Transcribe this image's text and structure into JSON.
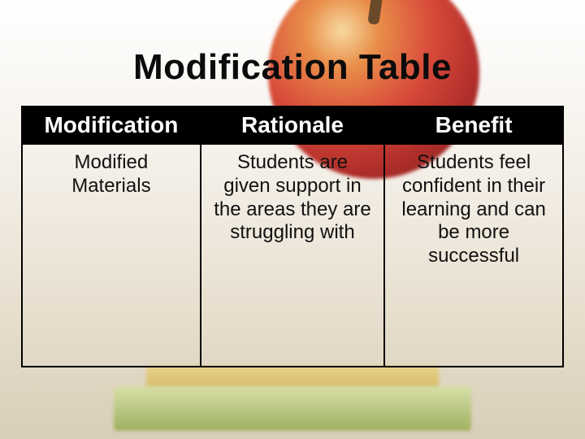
{
  "slide": {
    "title": "Modification Table",
    "title_color": "#0b0b0b",
    "title_fontsize": 44,
    "background_gradient": [
      "#ffffff",
      "#f5f1ea",
      "#e8dfcf",
      "#d9ceb8"
    ]
  },
  "table": {
    "type": "table",
    "border_color": "#000000",
    "header_bg": "#000000",
    "header_text_color": "#ffffff",
    "header_fontsize": 28,
    "cell_fontsize": 24,
    "cell_text_color": "#111111",
    "columns": [
      {
        "label": "Modification",
        "width_pct": 33,
        "align": "center"
      },
      {
        "label": "Rationale",
        "width_pct": 34,
        "align": "center"
      },
      {
        "label": "Benefit",
        "width_pct": 33,
        "align": "center"
      }
    ],
    "rows": [
      {
        "modification": "Modified Materials",
        "rationale": "Students are given support in the areas they are struggling with",
        "benefit": "Students feel confident in their learning and can be more successful"
      }
    ]
  },
  "decor": {
    "apple_colors": [
      "#f7d9a0",
      "#e98f4a",
      "#d84a3a",
      "#b02e2a",
      "#7a1f1c"
    ],
    "stem_color": "#6b4a2a",
    "book_colors": [
      "#e8d48a",
      "#caa64f",
      "#d7e0a8",
      "#9fb060"
    ]
  }
}
